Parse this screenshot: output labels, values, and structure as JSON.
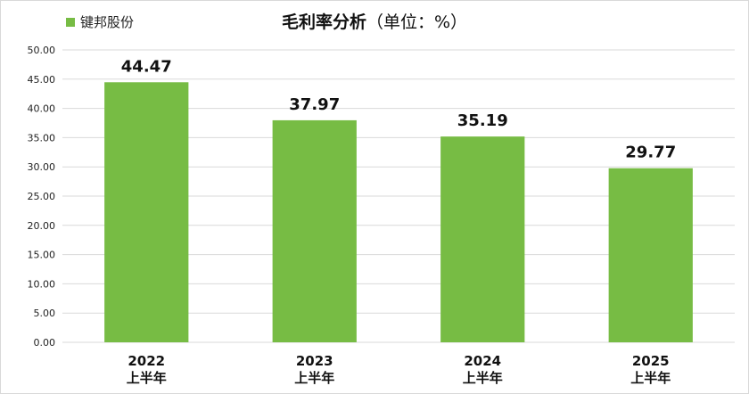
{
  "chart_data": {
    "type": "bar",
    "title": "毛利率分析",
    "title_unit": "（单位：%）",
    "categories": [
      {
        "year": "2022",
        "period": "上半年"
      },
      {
        "year": "2023",
        "period": "上半年"
      },
      {
        "year": "2024",
        "period": "上半年"
      },
      {
        "year": "2025",
        "period": "上半年"
      }
    ],
    "series": [
      {
        "name": "键邦股份",
        "values": [
          44.47,
          37.97,
          35.19,
          29.77
        ],
        "color": "#77bc44"
      }
    ],
    "data_labels": [
      "44.47",
      "37.97",
      "35.19",
      "29.77"
    ],
    "ylim": [
      0,
      50
    ],
    "yticks": [
      "0.00",
      "5.00",
      "10.00",
      "15.00",
      "20.00",
      "25.00",
      "30.00",
      "35.00",
      "40.00",
      "45.00",
      "50.00"
    ],
    "grid": true,
    "legend_position": "top-left",
    "grid_color": "#d9d9d9"
  }
}
